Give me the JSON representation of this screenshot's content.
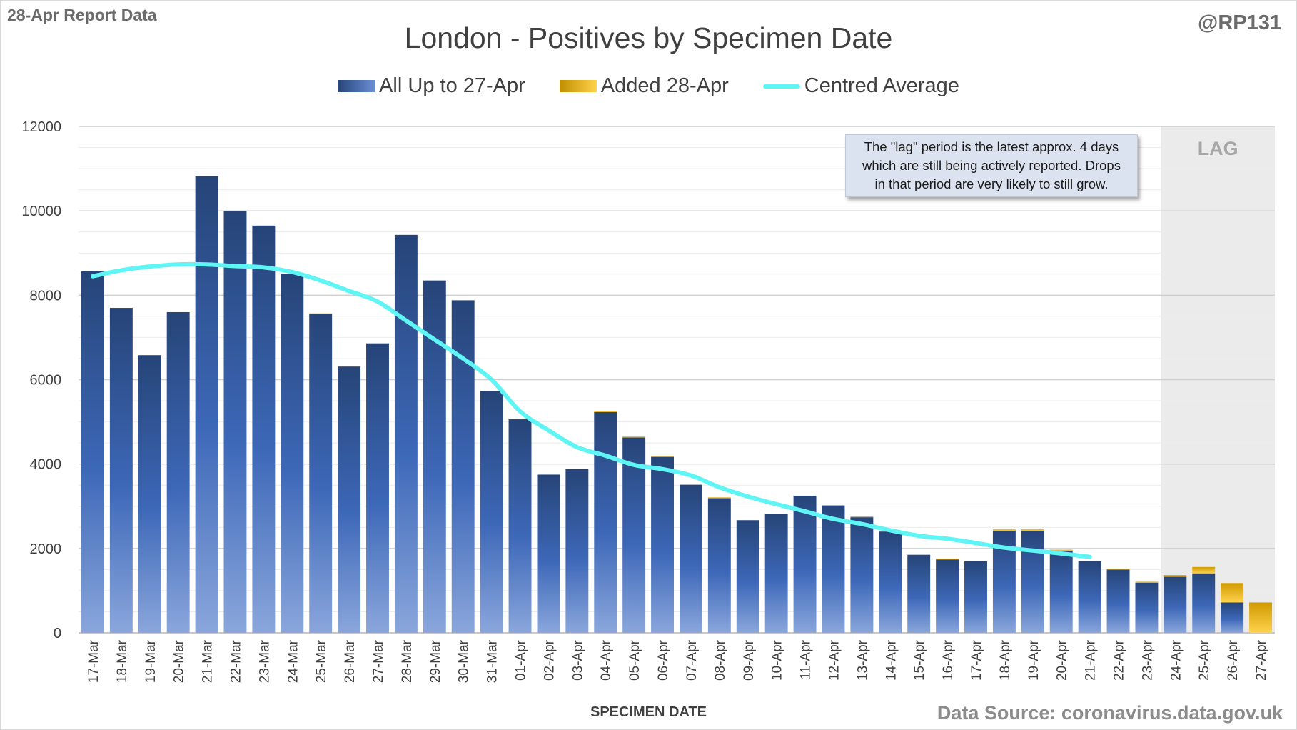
{
  "header": {
    "report_label": "28-Apr Report Data",
    "handle": "@RP131"
  },
  "colors": {
    "bar_dark": "#264478",
    "bar_light": "#8aa6dc",
    "added_dark": "#d09a00",
    "added_light": "#ffd24d",
    "average_line": "#5ff5f5",
    "lag_shade": "#ebebeb",
    "grid": "#d9d9d9"
  },
  "note": {
    "lines": [
      "The \"lag\" period is the latest approx. 4 days",
      "which are still being actively reported.  Drops",
      "in that period are very likely to still grow."
    ]
  },
  "lag_label": "LAG",
  "footer": {
    "source": "Data Source: coronavirus.data.gov.uk"
  },
  "chart_data": {
    "type": "bar",
    "title": "London - Positives by Specimen Date",
    "xlabel": "SPECIMEN DATE",
    "ylabel": "",
    "ylim": [
      0,
      12000
    ],
    "yticks": [
      0,
      2000,
      4000,
      6000,
      8000,
      10000,
      12000
    ],
    "grid": true,
    "stacked": true,
    "legend_position": "top",
    "lag_region": [
      "24-Apr",
      "27-Apr"
    ],
    "categories": [
      "17-Mar",
      "18-Mar",
      "19-Mar",
      "20-Mar",
      "21-Mar",
      "22-Mar",
      "23-Mar",
      "24-Mar",
      "25-Mar",
      "26-Mar",
      "27-Mar",
      "28-Mar",
      "29-Mar",
      "30-Mar",
      "31-Mar",
      "01-Apr",
      "02-Apr",
      "03-Apr",
      "04-Apr",
      "05-Apr",
      "06-Apr",
      "07-Apr",
      "08-Apr",
      "09-Apr",
      "10-Apr",
      "11-Apr",
      "12-Apr",
      "13-Apr",
      "14-Apr",
      "15-Apr",
      "16-Apr",
      "17-Apr",
      "18-Apr",
      "19-Apr",
      "20-Apr",
      "21-Apr",
      "22-Apr",
      "23-Apr",
      "24-Apr",
      "25-Apr",
      "26-Apr",
      "27-Apr"
    ],
    "series": [
      {
        "name": "All Up to 27-Apr",
        "kind": "bar",
        "values": [
          8570,
          7700,
          6580,
          7600,
          10820,
          10000,
          9650,
          8500,
          7550,
          6310,
          6860,
          9430,
          8350,
          7880,
          5730,
          5060,
          3750,
          3880,
          5230,
          4630,
          4170,
          3510,
          3190,
          2670,
          2820,
          3250,
          3020,
          2740,
          2400,
          1850,
          1740,
          1700,
          2420,
          2420,
          1950,
          1700,
          1500,
          1190,
          1330,
          1410,
          720,
          0
        ]
      },
      {
        "name": "Added 28-Apr",
        "kind": "bar",
        "values": [
          0,
          0,
          0,
          0,
          0,
          0,
          0,
          0,
          20,
          0,
          0,
          0,
          0,
          0,
          0,
          0,
          0,
          0,
          20,
          20,
          20,
          0,
          20,
          0,
          0,
          0,
          0,
          20,
          0,
          0,
          20,
          0,
          30,
          30,
          20,
          0,
          20,
          20,
          40,
          150,
          460,
          720
        ]
      },
      {
        "name": "Centred Average",
        "kind": "line",
        "values": [
          8450,
          8590,
          8680,
          8730,
          8730,
          8690,
          8660,
          8550,
          8350,
          8100,
          7850,
          7400,
          6950,
          6500,
          6000,
          5250,
          4800,
          4400,
          4200,
          3980,
          3880,
          3730,
          3450,
          3230,
          3050,
          2880,
          2700,
          2580,
          2430,
          2300,
          2230,
          2130,
          2020,
          1950,
          1880,
          1800,
          null,
          null,
          null,
          null,
          null,
          null
        ]
      }
    ]
  }
}
